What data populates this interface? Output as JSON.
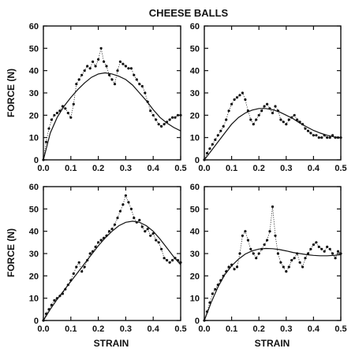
{
  "figure": {
    "title": "CHEESE BALLS",
    "y_label": "FORCE (N)",
    "x_label": "STRAIN"
  },
  "chart_data": [
    {
      "type": "scatter",
      "panel": "top-left",
      "xlim": [
        0,
        0.5
      ],
      "ylim": [
        0,
        60
      ],
      "x_ticks": [
        "0.0",
        "0.1",
        "0.2",
        "0.3",
        "0.4",
        "0.5"
      ],
      "y_ticks": [
        "0",
        "10",
        "20",
        "30",
        "40",
        "50",
        "60"
      ],
      "series": [
        {
          "kind": "points",
          "x": [
            0.0,
            0.01,
            0.02,
            0.03,
            0.04,
            0.05,
            0.06,
            0.07,
            0.08,
            0.09,
            0.1,
            0.11,
            0.12,
            0.13,
            0.14,
            0.15,
            0.16,
            0.17,
            0.18,
            0.19,
            0.2,
            0.21,
            0.22,
            0.23,
            0.24,
            0.25,
            0.26,
            0.27,
            0.28,
            0.29,
            0.3,
            0.31,
            0.32,
            0.33,
            0.34,
            0.35,
            0.36,
            0.37,
            0.38,
            0.39,
            0.4,
            0.41,
            0.42,
            0.43,
            0.44,
            0.45,
            0.46,
            0.47,
            0.48,
            0.49,
            0.5
          ],
          "y": [
            0,
            8,
            14,
            18,
            20,
            21,
            22,
            24,
            23,
            21,
            19,
            25,
            34,
            36,
            38,
            40,
            42,
            41,
            44,
            42,
            45,
            50,
            44,
            42,
            38,
            36,
            34,
            40,
            44,
            43,
            42,
            41,
            41,
            38,
            36,
            34,
            33,
            30,
            26,
            22,
            20,
            18,
            16,
            15,
            16,
            17,
            18,
            19,
            19,
            20,
            20
          ]
        },
        {
          "kind": "fit",
          "x": [
            0.0,
            0.025,
            0.05,
            0.075,
            0.1,
            0.125,
            0.15,
            0.175,
            0.2,
            0.225,
            0.25,
            0.275,
            0.3,
            0.325,
            0.35,
            0.375,
            0.4,
            0.425,
            0.45,
            0.475,
            0.5
          ],
          "y": [
            0,
            12,
            19,
            24,
            28,
            31.5,
            34.5,
            37,
            38.5,
            39,
            38.5,
            37.5,
            36,
            33.5,
            30,
            26.5,
            22.5,
            19,
            16.5,
            14.5,
            13
          ]
        }
      ]
    },
    {
      "type": "scatter",
      "panel": "top-right",
      "xlim": [
        0,
        0.5
      ],
      "ylim": [
        0,
        60
      ],
      "x_ticks": [
        "0.0",
        "0.1",
        "0.2",
        "0.3",
        "0.4",
        "0.5"
      ],
      "y_ticks": [
        "0",
        "10",
        "20",
        "30",
        "40",
        "50",
        "60"
      ],
      "series": [
        {
          "kind": "points",
          "x": [
            0.0,
            0.01,
            0.02,
            0.03,
            0.04,
            0.05,
            0.06,
            0.07,
            0.08,
            0.09,
            0.1,
            0.11,
            0.12,
            0.13,
            0.14,
            0.15,
            0.16,
            0.17,
            0.18,
            0.19,
            0.2,
            0.21,
            0.22,
            0.23,
            0.24,
            0.25,
            0.26,
            0.27,
            0.28,
            0.29,
            0.3,
            0.31,
            0.32,
            0.33,
            0.34,
            0.35,
            0.36,
            0.37,
            0.38,
            0.39,
            0.4,
            0.41,
            0.42,
            0.43,
            0.44,
            0.45,
            0.46,
            0.47,
            0.48,
            0.49,
            0.5
          ],
          "y": [
            0,
            3,
            5,
            7,
            9,
            11,
            13,
            15,
            18,
            22,
            25,
            27,
            28,
            29,
            30,
            27,
            22,
            18,
            16,
            18,
            20,
            22,
            24,
            25,
            23,
            21,
            24,
            22,
            18,
            17,
            16,
            18,
            19,
            20,
            18,
            17,
            16,
            14,
            13,
            12,
            11,
            11,
            10,
            10,
            11,
            10,
            10,
            11,
            10,
            10,
            10
          ]
        },
        {
          "kind": "fit",
          "x": [
            0.0,
            0.025,
            0.05,
            0.075,
            0.1,
            0.125,
            0.15,
            0.175,
            0.2,
            0.225,
            0.25,
            0.275,
            0.3,
            0.325,
            0.35,
            0.375,
            0.4,
            0.425,
            0.45,
            0.475,
            0.5
          ],
          "y": [
            0,
            4,
            8,
            12,
            16,
            19,
            21,
            22.3,
            23,
            23,
            22.5,
            21.5,
            20,
            18.5,
            16.5,
            14.8,
            13.2,
            12,
            11,
            10.3,
            10
          ]
        }
      ]
    },
    {
      "type": "scatter",
      "panel": "bottom-left",
      "xlim": [
        0,
        0.5
      ],
      "ylim": [
        0,
        60
      ],
      "x_ticks": [
        "0.0",
        "0.1",
        "0.2",
        "0.3",
        "0.4",
        "0.5"
      ],
      "y_ticks": [
        "0",
        "10",
        "20",
        "30",
        "40",
        "50",
        "60"
      ],
      "series": [
        {
          "kind": "points",
          "x": [
            0.0,
            0.01,
            0.02,
            0.03,
            0.04,
            0.05,
            0.06,
            0.07,
            0.08,
            0.09,
            0.1,
            0.11,
            0.12,
            0.13,
            0.14,
            0.15,
            0.16,
            0.17,
            0.18,
            0.19,
            0.2,
            0.21,
            0.22,
            0.23,
            0.24,
            0.25,
            0.26,
            0.27,
            0.28,
            0.29,
            0.3,
            0.31,
            0.32,
            0.33,
            0.34,
            0.35,
            0.36,
            0.37,
            0.38,
            0.39,
            0.4,
            0.41,
            0.42,
            0.43,
            0.44,
            0.45,
            0.46,
            0.47,
            0.48,
            0.49,
            0.5
          ],
          "y": [
            0,
            3,
            5,
            7,
            9,
            10,
            11,
            12,
            14,
            16,
            18,
            21,
            24,
            26,
            22,
            24,
            27,
            30,
            31,
            33,
            35,
            36,
            37,
            38,
            40,
            41,
            43,
            46,
            49,
            52,
            56,
            53,
            50,
            46,
            44,
            45,
            42,
            40,
            41,
            38,
            39,
            36,
            35,
            32,
            28,
            27,
            26,
            27,
            28,
            27,
            26
          ]
        },
        {
          "kind": "fit",
          "x": [
            0.0,
            0.025,
            0.05,
            0.075,
            0.1,
            0.125,
            0.15,
            0.175,
            0.2,
            0.225,
            0.25,
            0.275,
            0.3,
            0.325,
            0.35,
            0.375,
            0.4,
            0.425,
            0.45,
            0.475,
            0.5
          ],
          "y": [
            0,
            5,
            9.5,
            13.5,
            17.5,
            21.5,
            25.5,
            29.5,
            33.5,
            37,
            40,
            42.5,
            44,
            44.5,
            44,
            42.5,
            40,
            36.5,
            32.5,
            28.5,
            25
          ]
        }
      ]
    },
    {
      "type": "scatter",
      "panel": "bottom-right",
      "xlim": [
        0,
        0.5
      ],
      "ylim": [
        0,
        60
      ],
      "x_ticks": [
        "0.0",
        "0.1",
        "0.2",
        "0.3",
        "0.4",
        "0.5"
      ],
      "y_ticks": [
        "0",
        "10",
        "20",
        "30",
        "40",
        "50",
        "60"
      ],
      "series": [
        {
          "kind": "points",
          "x": [
            0.0,
            0.01,
            0.02,
            0.03,
            0.04,
            0.05,
            0.06,
            0.07,
            0.08,
            0.09,
            0.1,
            0.11,
            0.12,
            0.13,
            0.14,
            0.15,
            0.16,
            0.17,
            0.18,
            0.19,
            0.2,
            0.21,
            0.22,
            0.23,
            0.24,
            0.25,
            0.26,
            0.27,
            0.28,
            0.29,
            0.3,
            0.31,
            0.32,
            0.33,
            0.34,
            0.35,
            0.36,
            0.37,
            0.38,
            0.39,
            0.4,
            0.41,
            0.42,
            0.43,
            0.44,
            0.45,
            0.46,
            0.47,
            0.48,
            0.49,
            0.5
          ],
          "y": [
            0,
            4,
            8,
            12,
            14,
            16,
            18,
            20,
            22,
            24,
            25,
            23,
            24,
            30,
            38,
            40,
            36,
            32,
            30,
            28,
            30,
            32,
            34,
            36,
            40,
            51,
            38,
            30,
            26,
            24,
            22,
            24,
            27,
            28,
            30,
            26,
            24,
            28,
            30,
            32,
            34,
            35,
            33,
            32,
            31,
            33,
            32,
            30,
            28,
            31,
            30
          ]
        },
        {
          "kind": "fit",
          "x": [
            0.0,
            0.025,
            0.05,
            0.075,
            0.1,
            0.125,
            0.15,
            0.175,
            0.2,
            0.225,
            0.25,
            0.275,
            0.3,
            0.325,
            0.35,
            0.375,
            0.4,
            0.425,
            0.45,
            0.475,
            0.5
          ],
          "y": [
            0,
            8,
            15,
            20.5,
            24.5,
            27.5,
            29.8,
            31.2,
            32,
            32.3,
            32.2,
            31.8,
            31.2,
            30.5,
            30,
            29.5,
            29.2,
            29,
            29,
            29.2,
            29.5
          ]
        }
      ]
    }
  ]
}
